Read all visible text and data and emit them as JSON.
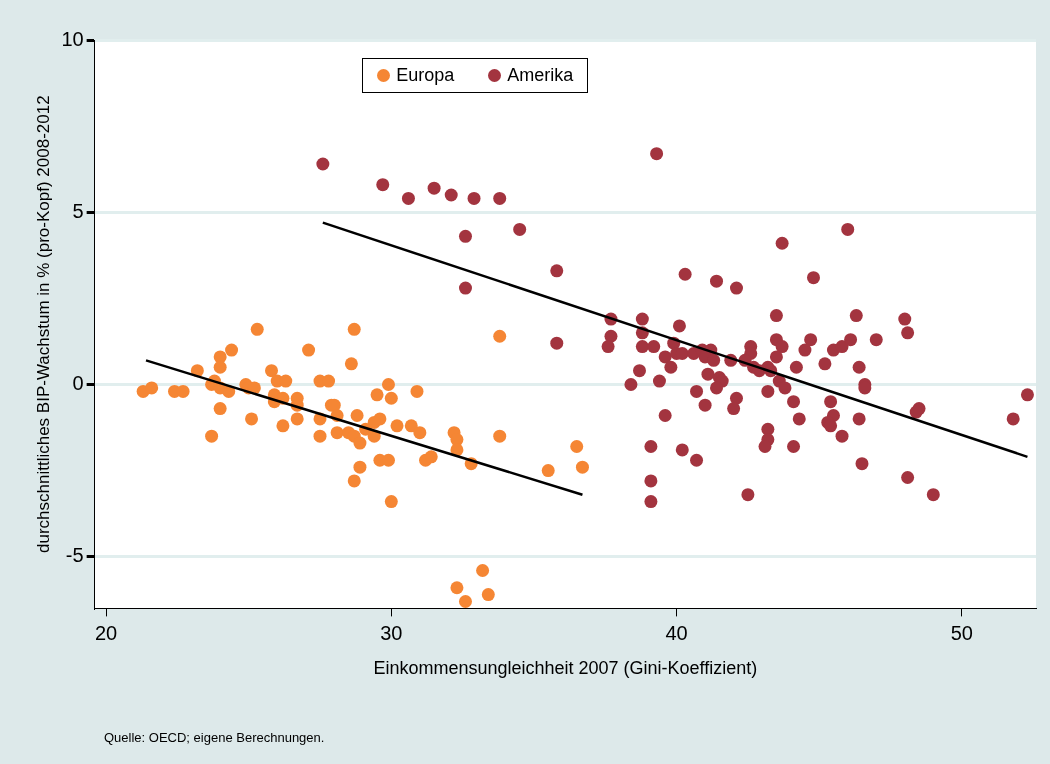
{
  "chart_data": {
    "type": "scatter",
    "xlabel": "Einkommensungleichheit 2007 (Gini-Koeffizient)",
    "ylabel": "durchschnittliches BIP-Wachstum in % (pro-Kopf) 2008-2012",
    "annotations": [
      "Quelle: OECD; eigene Berechnungen."
    ],
    "xlim": [
      19.6,
      52.6
    ],
    "xticks": [
      20,
      30,
      40,
      50
    ],
    "ylim": [
      -6.5,
      10
    ],
    "yticks": [
      -5,
      0,
      5,
      10
    ],
    "grid": "y",
    "legend": "top",
    "series": [
      {
        "name": "Europa",
        "color": "#f58634",
        "marker": "circle",
        "x": [
          21.3,
          21.6,
          22.4,
          22.7,
          23.2,
          23.8,
          23.7,
          24.0,
          24.3,
          24.0,
          24.0,
          24.4,
          24.0,
          23.7,
          24.9,
          25.0,
          25.2,
          25.1,
          25.3,
          25.8,
          26.0,
          26.3,
          25.9,
          25.9,
          26.2,
          26.2,
          26.7,
          26.7,
          26.7,
          27.1,
          27.5,
          27.8,
          27.5,
          27.5,
          27.9,
          28.0,
          28.1,
          28.1,
          28.6,
          28.7,
          28.8,
          28.5,
          28.7,
          28.9,
          29.1,
          29.4,
          29.6,
          29.4,
          29.5,
          29.9,
          30.0,
          30.2,
          29.6,
          29.9,
          28.9,
          28.7,
          30.0,
          30.7,
          30.9,
          31.0,
          31.2,
          31.4,
          32.2,
          32.3,
          32.3,
          32.8,
          33.8,
          33.8,
          35.5,
          36.5,
          36.7,
          32.3,
          33.2,
          32.6,
          33.4
        ],
        "values": [
          -0.2,
          -0.1,
          -0.2,
          -0.2,
          0.4,
          0.1,
          0,
          -0.1,
          -0.2,
          0.8,
          0.5,
          1.0,
          -0.7,
          -1.5,
          0,
          -0.1,
          -0.1,
          -1.0,
          1.6,
          0.4,
          0.1,
          0.1,
          -0.3,
          -0.5,
          -0.4,
          -1.2,
          -0.4,
          -0.6,
          -1.0,
          1.0,
          0.1,
          0.1,
          -1.0,
          -1.5,
          -0.6,
          -0.6,
          -0.9,
          -1.4,
          0.6,
          1.6,
          -0.9,
          -1.4,
          -1.5,
          -1.7,
          -1.3,
          -1.5,
          -1.0,
          -1.1,
          -0.3,
          0,
          -0.4,
          -1.2,
          -2.2,
          -2.2,
          -2.4,
          -2.8,
          -3.4,
          -1.2,
          -0.2,
          -1.4,
          -2.2,
          -2.1,
          -1.4,
          -1.6,
          -1.9,
          -2.3,
          1.4,
          -1.5,
          -2.5,
          -1.8,
          -2.4,
          -5.9,
          -5.4,
          -6.3,
          -6.1
        ]
      },
      {
        "name": "Amerika",
        "color": "#a3343f",
        "marker": "circle",
        "x": [
          27.6,
          29.7,
          30.6,
          31.5,
          32.1,
          32.9,
          33.8,
          32.6,
          34.5,
          35.8,
          32.6,
          35.8,
          37.7,
          37.7,
          37.6,
          39.3,
          43.7,
          46.0,
          40.3,
          41.4,
          42.1,
          44.8,
          43.5,
          46.3,
          38.8,
          40.1,
          38.8,
          38.8,
          39.2,
          39.9,
          39.6,
          40.0,
          40.2,
          39.8,
          38.7,
          39.4,
          38.4,
          40.6,
          40.9,
          41.2,
          41.0,
          41.3,
          41.1,
          41.5,
          41.6,
          41.4,
          40.7,
          41.0,
          41.9,
          42.6,
          42.6,
          42.4,
          42.7,
          42.9,
          43.2,
          43.3,
          43.5,
          43.7,
          43.5,
          43.6,
          43.8,
          43.2,
          42.1,
          42.0,
          44.1,
          44.3,
          44.2,
          44.7,
          44.5,
          45.2,
          45.5,
          45.8,
          46.1,
          46.4,
          46.6,
          46.6,
          46.4,
          47.0,
          45.4,
          45.5,
          45.3,
          45.4,
          45.8,
          43.2,
          43.2,
          43.1,
          44.1,
          46.5,
          39.6,
          39.1,
          40.2,
          40.7,
          39.1,
          39.1,
          42.5,
          48.0,
          48.1,
          52.3,
          51.8,
          48.5,
          48.4,
          48.1,
          49.0
        ],
        "values": [
          6.4,
          5.8,
          5.4,
          5.7,
          5.5,
          5.4,
          5.4,
          4.3,
          4.5,
          3.3,
          2.8,
          1.2,
          1.9,
          1.4,
          1.1,
          6.7,
          4.1,
          4.5,
          3.2,
          3.0,
          2.8,
          3.1,
          2.0,
          2.0,
          1.9,
          1.7,
          1.5,
          1.1,
          1.1,
          1.2,
          0.8,
          0.9,
          0.9,
          0.5,
          0.4,
          0.1,
          0,
          0.9,
          1.0,
          1.0,
          0.8,
          0.7,
          0.3,
          0.2,
          0.1,
          -0.1,
          -0.2,
          -0.6,
          0.7,
          1.1,
          0.9,
          0.7,
          0.5,
          0.4,
          0.5,
          0.4,
          1.3,
          1.1,
          0.8,
          0.1,
          -0.1,
          -0.2,
          -0.4,
          -0.7,
          -0.5,
          -1.0,
          0.5,
          1.3,
          1.0,
          0.6,
          1.0,
          1.1,
          1.3,
          0.5,
          0,
          -0.1,
          -1.0,
          1.3,
          -0.5,
          -0.9,
          -1.1,
          -1.2,
          -1.5,
          -1.3,
          -1.6,
          -1.8,
          -1.8,
          -2.3,
          -0.9,
          -1.8,
          -1.9,
          -2.2,
          -2.8,
          -3.4,
          -3.2,
          1.9,
          1.5,
          -0.3,
          -1.0,
          -0.7,
          -0.8,
          -2.7,
          -3.2
        ]
      },
      {
        "type": "line",
        "color": "#000000",
        "x": [
          21.4,
          36.7
        ],
        "values": [
          0.7,
          -3.2
        ],
        "marker": "none"
      },
      {
        "type": "line",
        "color": "#000000",
        "x": [
          27.6,
          52.3
        ],
        "values": [
          4.7,
          -2.1
        ],
        "marker": "none"
      }
    ]
  }
}
